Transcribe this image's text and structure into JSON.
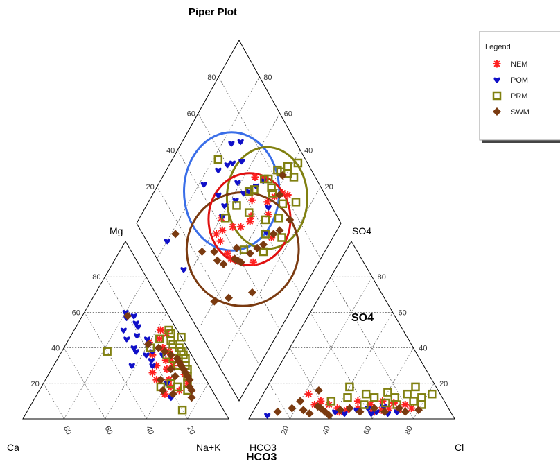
{
  "chart_data": {
    "type": "scatter",
    "title": "Piper Plot",
    "legend": {
      "title": "Legend",
      "placement": "top-right",
      "entries": [
        {
          "name": "NEM",
          "color": "#ff2020",
          "marker": "asterisk"
        },
        {
          "name": "POM",
          "color": "#1010c8",
          "marker": "heart"
        },
        {
          "name": "PRM",
          "color": "#808010",
          "marker": "open-square"
        },
        {
          "name": "SWM",
          "color": "#7a3a10",
          "marker": "diamond"
        }
      ]
    },
    "cation_triangle": {
      "vertex_labels": {
        "left": "Ca",
        "right": "Na+K",
        "top": "Mg"
      },
      "tick_labels": [
        "20",
        "40",
        "60",
        "80"
      ]
    },
    "anion_triangle": {
      "vertex_labels": {
        "left": "HCO3",
        "right": "Cl",
        "top": "SO4"
      },
      "secondary_labels": {
        "top": "SO4",
        "bottom": "HCO3"
      },
      "tick_labels": [
        "20",
        "40",
        "60",
        "80"
      ]
    },
    "diamond": {
      "tick_labels": [
        "20",
        "40",
        "60",
        "80"
      ]
    },
    "grid": true,
    "annotations": [
      {
        "shape": "ellipse",
        "color": "#3a6ee8",
        "group": "POM"
      },
      {
        "shape": "ellipse",
        "color": "#808010",
        "group": "PRM"
      },
      {
        "shape": "ellipse",
        "color": "#7a3a10",
        "group": "SWM"
      },
      {
        "shape": "ellipse",
        "color": "#e01010",
        "group": "NEM"
      }
    ],
    "series": [
      {
        "name": "NEM",
        "cations": [
          [
            42,
            50
          ],
          [
            46,
            48
          ],
          [
            44,
            45
          ],
          [
            40,
            43
          ],
          [
            48,
            40
          ],
          [
            52,
            38
          ],
          [
            55,
            34
          ],
          [
            50,
            30
          ],
          [
            58,
            30
          ],
          [
            45,
            36
          ],
          [
            60,
            22
          ],
          [
            63,
            18
          ],
          [
            66,
            25
          ],
          [
            54,
            22
          ],
          [
            70,
            20
          ],
          [
            62,
            14
          ],
          [
            68,
            16
          ],
          [
            50,
            26
          ],
          [
            56,
            28
          ],
          [
            53,
            33
          ]
        ],
        "anions": [
          [
            22,
            14
          ],
          [
            28,
            8
          ],
          [
            30,
            10
          ],
          [
            35,
            8
          ],
          [
            40,
            6
          ],
          [
            45,
            5
          ],
          [
            50,
            6
          ],
          [
            55,
            8
          ],
          [
            60,
            10
          ],
          [
            65,
            6
          ],
          [
            70,
            5
          ],
          [
            72,
            8
          ],
          [
            76,
            6
          ],
          [
            48,
            10
          ],
          [
            58,
            4
          ],
          [
            62,
            5
          ],
          [
            42,
            4
          ],
          [
            66,
            9
          ]
        ]
      },
      {
        "name": "POM",
        "cations": [
          [
            20,
            60
          ],
          [
            22,
            57
          ],
          [
            25,
            58
          ],
          [
            28,
            54
          ],
          [
            30,
            52
          ],
          [
            24,
            50
          ],
          [
            28,
            45
          ],
          [
            32,
            47
          ],
          [
            34,
            40
          ],
          [
            38,
            45
          ],
          [
            36,
            38
          ],
          [
            40,
            42
          ],
          [
            42,
            36
          ],
          [
            44,
            38
          ],
          [
            46,
            33
          ],
          [
            48,
            30
          ],
          [
            50,
            36
          ],
          [
            38,
            30
          ],
          [
            60,
            20
          ],
          [
            66,
            12
          ]
        ],
        "anions": [
          [
            8,
            2
          ],
          [
            40,
            4
          ],
          [
            50,
            5
          ],
          [
            55,
            6
          ],
          [
            60,
            4
          ],
          [
            66,
            3
          ],
          [
            70,
            4
          ],
          [
            45,
            3
          ],
          [
            62,
            7
          ],
          [
            58,
            3
          ]
        ]
      },
      {
        "name": "PRM",
        "cations": [
          [
            22,
            38
          ],
          [
            42,
            40
          ],
          [
            44,
            45
          ],
          [
            46,
            50
          ],
          [
            48,
            48
          ],
          [
            50,
            44
          ],
          [
            52,
            42
          ],
          [
            54,
            46
          ],
          [
            56,
            40
          ],
          [
            58,
            38
          ],
          [
            60,
            36
          ],
          [
            62,
            34
          ],
          [
            64,
            30
          ],
          [
            66,
            28
          ],
          [
            68,
            24
          ],
          [
            56,
            34
          ],
          [
            52,
            36
          ],
          [
            60,
            30
          ],
          [
            70,
            20
          ],
          [
            62,
            20
          ],
          [
            75,
            5
          ],
          [
            58,
            18
          ],
          [
            66,
            18
          ],
          [
            72,
            16
          ]
        ],
        "anions": [
          [
            40,
            18
          ],
          [
            35,
            10
          ],
          [
            42,
            12
          ],
          [
            50,
            14
          ],
          [
            55,
            12
          ],
          [
            60,
            15
          ],
          [
            65,
            12
          ],
          [
            70,
            14
          ],
          [
            75,
            10
          ],
          [
            78,
            12
          ],
          [
            80,
            8
          ],
          [
            82,
            14
          ],
          [
            72,
            18
          ],
          [
            52,
            8
          ],
          [
            62,
            9
          ],
          [
            68,
            8
          ]
        ]
      },
      {
        "name": "SWM",
        "cations": [
          [
            22,
            58
          ],
          [
            40,
            42
          ],
          [
            46,
            40
          ],
          [
            50,
            38
          ],
          [
            54,
            36
          ],
          [
            58,
            34
          ],
          [
            60,
            32
          ],
          [
            62,
            30
          ],
          [
            64,
            28
          ],
          [
            66,
            26
          ],
          [
            68,
            24
          ],
          [
            70,
            22
          ],
          [
            72,
            18
          ],
          [
            74,
            16
          ],
          [
            62,
            24
          ],
          [
            58,
            28
          ],
          [
            56,
            22
          ],
          [
            76,
            12
          ],
          [
            60,
            16
          ],
          [
            66,
            14
          ]
        ],
        "anions": [
          [
            12,
            4
          ],
          [
            18,
            6
          ],
          [
            20,
            10
          ],
          [
            24,
            5
          ],
          [
            28,
            3
          ],
          [
            32,
            6
          ],
          [
            35,
            4
          ],
          [
            38,
            2
          ],
          [
            42,
            5
          ],
          [
            46,
            6
          ],
          [
            52,
            4
          ],
          [
            58,
            6
          ],
          [
            64,
            4
          ],
          [
            70,
            6
          ],
          [
            74,
            4
          ],
          [
            80,
            5
          ],
          [
            26,
            16
          ],
          [
            30,
            7
          ]
        ]
      }
    ]
  }
}
